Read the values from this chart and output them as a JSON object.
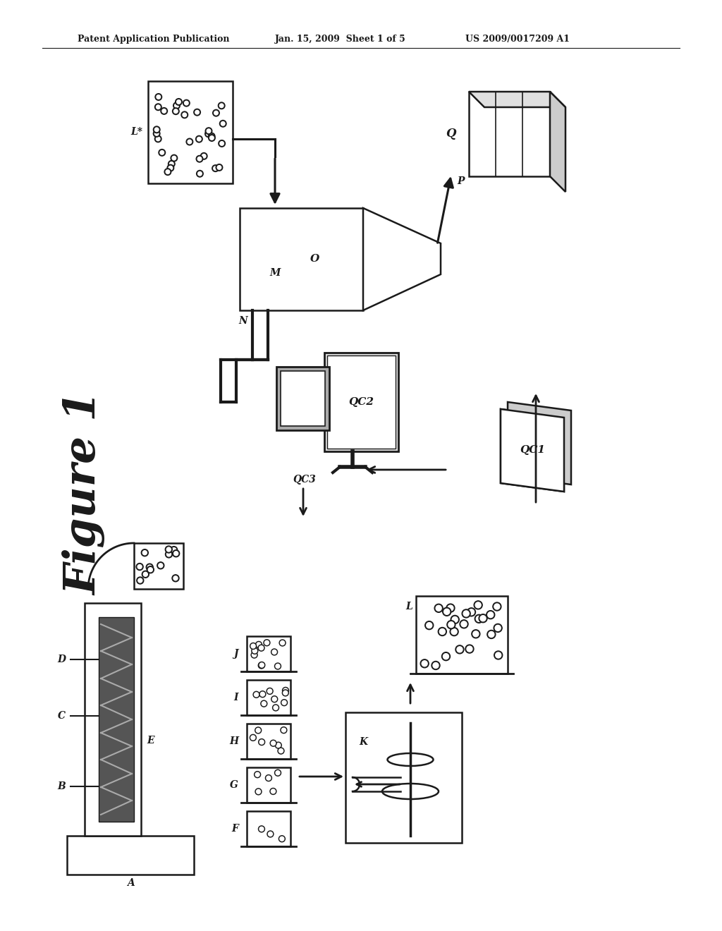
{
  "bg_color": "#ffffff",
  "header_line1": "Patent Application Publication",
  "header_line2": "Jan. 15, 2009  Sheet 1 of 5",
  "header_line3": "US 2009/0017209 A1",
  "figure_label": "Figure 1",
  "labels": {
    "L_star": "L*",
    "Q": "Q",
    "M": "M",
    "O": "O",
    "N": "N",
    "P": "P",
    "QC1": "QC1",
    "QC2": "QC2",
    "QC3": "QC3",
    "A": "A",
    "B": "B",
    "C": "C",
    "D": "D",
    "E": "E",
    "F": "F",
    "G": "G",
    "H": "H",
    "I": "I",
    "J": "J",
    "K": "K",
    "L": "L"
  }
}
